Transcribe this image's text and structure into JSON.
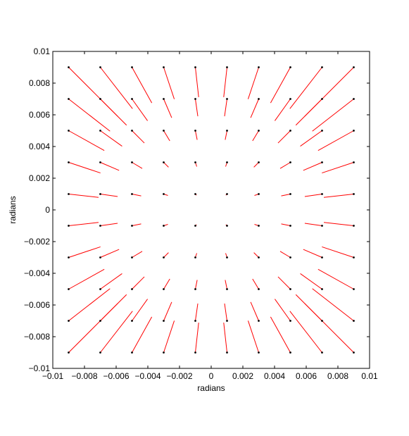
{
  "chart_data": {
    "type": "quiver",
    "title": "",
    "xlabel": "radians",
    "ylabel": "radians",
    "xlim": [
      -0.01,
      0.01
    ],
    "ylim": [
      -0.01,
      0.01
    ],
    "xticks": [
      -0.01,
      -0.008,
      -0.006,
      -0.004,
      -0.002,
      0,
      0.002,
      0.004,
      0.006,
      0.008,
      0.01
    ],
    "yticks": [
      -0.01,
      -0.008,
      -0.006,
      -0.004,
      -0.002,
      0,
      0.002,
      0.004,
      0.006,
      0.008,
      0.01
    ],
    "xtick_labels": [
      "−0.01",
      "−0.008",
      "−0.006",
      "−0.004",
      "−0.002",
      "0",
      "0.002",
      "0.004",
      "0.006",
      "0.008",
      "0.01"
    ],
    "ytick_labels": [
      "−0.01",
      "−0.008",
      "−0.006",
      "−0.004",
      "−0.002",
      "0",
      "0.002",
      "0.004",
      "0.006",
      "0.008",
      "0.01"
    ],
    "grid": false,
    "point_color": "#000000",
    "vector_color": "#ff0000",
    "points_x": [
      -0.009,
      -0.007,
      -0.005,
      -0.003,
      -0.001,
      0.001,
      0.003,
      0.005,
      0.007,
      0.009
    ],
    "points_y": [
      -0.009,
      -0.007,
      -0.005,
      -0.003,
      -0.001,
      0.001,
      0.003,
      0.005,
      0.007,
      0.009
    ],
    "vector_scale": 0.12
  }
}
